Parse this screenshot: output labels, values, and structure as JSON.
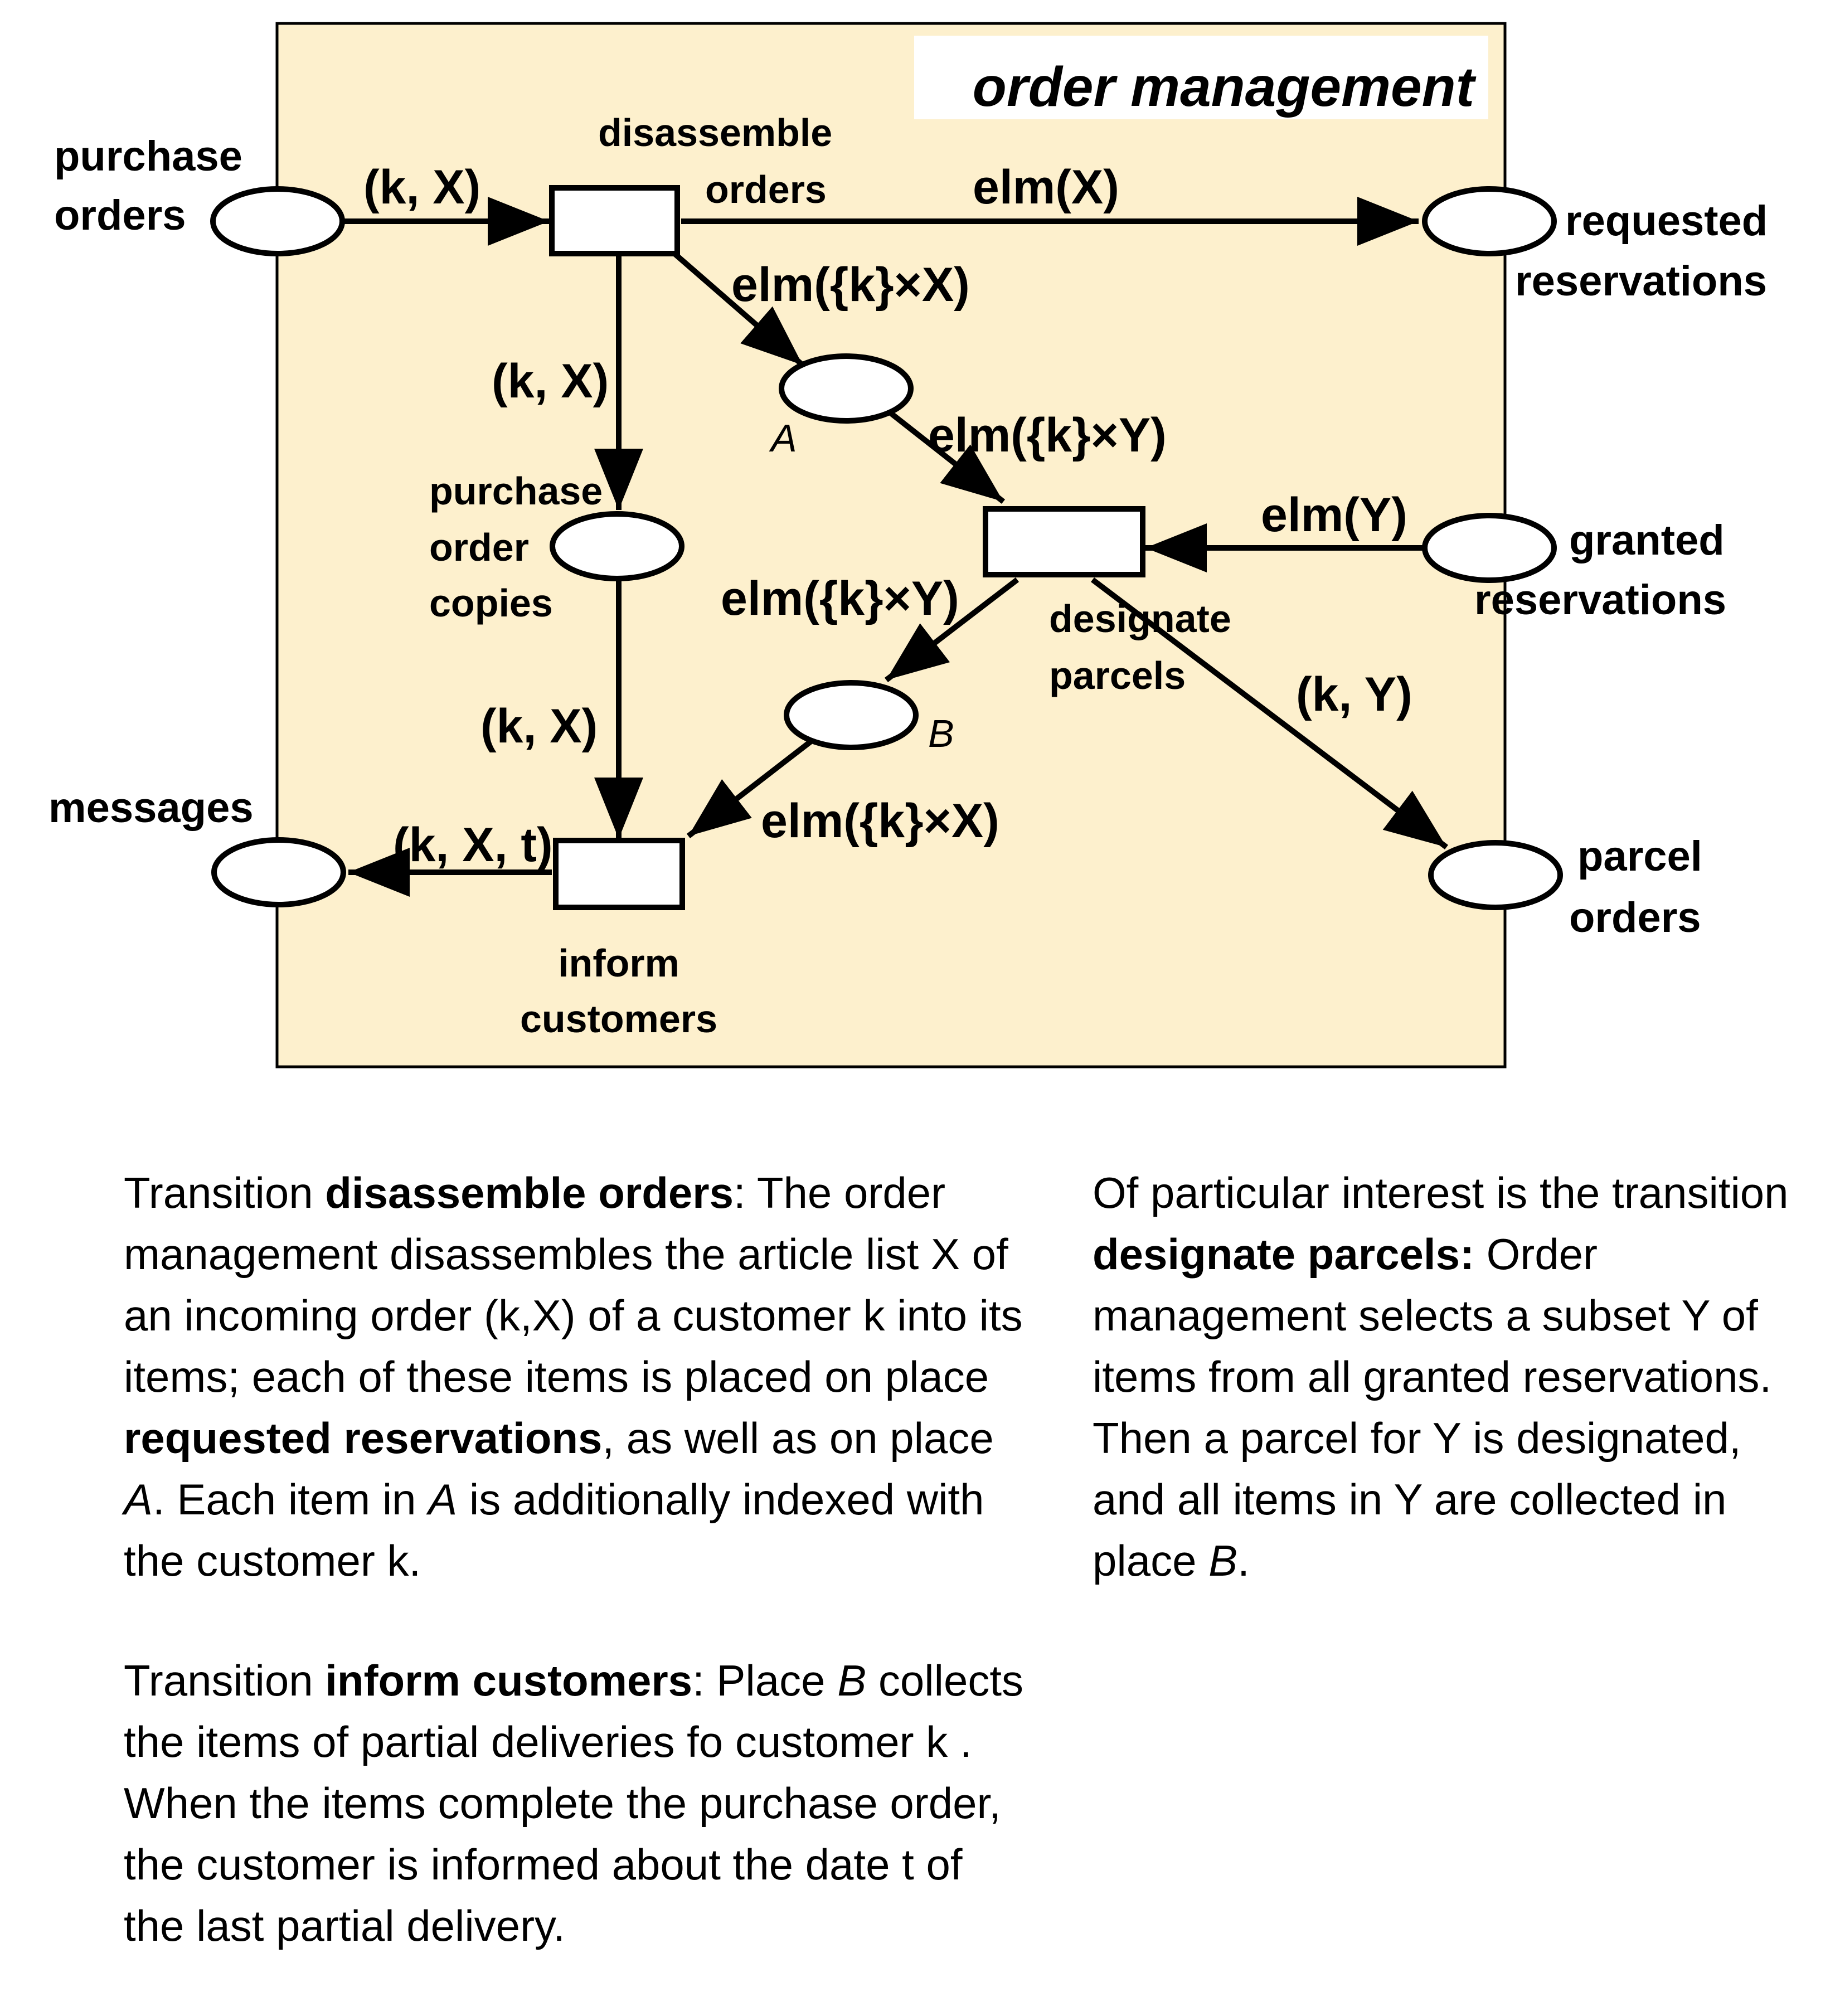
{
  "diagram": {
    "title": "order management",
    "places": {
      "purchase_orders": [
        "purchase",
        "orders"
      ],
      "requested_reservations": [
        "requested",
        "reservations"
      ],
      "granted_reservations": [
        "granted",
        "reservations"
      ],
      "parcel_orders": [
        "parcel",
        "orders"
      ],
      "messages": "messages",
      "purchase_order_copies": [
        "purchase",
        "order",
        "copies"
      ],
      "place_a": "A",
      "place_b": "B"
    },
    "transitions": {
      "disassemble_orders": [
        "disassemble",
        "orders"
      ],
      "designate_parcels": [
        "designate",
        "parcels"
      ],
      "inform_customers": [
        "inform",
        "customers"
      ]
    },
    "arcs": {
      "po_to_disassemble": "(k, X)",
      "disassemble_to_requested": "elm(X)",
      "disassemble_to_a": "elm({k}×X)",
      "disassemble_to_copies": "(k, X)",
      "a_to_designate": "elm({k}×Y)",
      "granted_to_designate": "elm(Y)",
      "designate_to_b": "elm({k}×Y)",
      "designate_to_parcel": "(k, Y)",
      "copies_to_inform": "(k, X)",
      "b_to_inform": "elm({k}×X)",
      "inform_to_messages": "(k, X, t)"
    }
  },
  "text": {
    "p1": {
      "s1": "Transition ",
      "b1": "disassemble orders",
      "s2": ": The order",
      "l2": "management disassembles the article list X of",
      "l3": "an incoming order (k,X) of a customer k into its",
      "l4": "items; each of these items is placed on place",
      "b2": "requested reservations",
      "s3": ", as well as on place",
      "i1": "A",
      "s4": ". Each item in ",
      "i2": "A",
      "s5": " is additionally indexed with",
      "l7": "the customer k."
    },
    "p2": {
      "s1": "Transition ",
      "b1": "inform customers",
      "s2": ": Place ",
      "i1": "B",
      "s3": " collects",
      "l2": "the items of partial deliveries fo customer k .",
      "l3": "When the items complete the purchase order,",
      "l4": "the customer is informed about the date t of",
      "l5": "the last partial delivery."
    },
    "p3": {
      "l1": "Of particular interest is the transition",
      "b1": "designate parcels:",
      "s1": " Order",
      "l3": "management selects a subset Y of",
      "l4": "items from all granted reservations.",
      "l5": "Then a parcel for Y is designated,",
      "l6": "and all items in Y are collected in",
      "s2": "place ",
      "i1": "B",
      "s3": "."
    }
  }
}
